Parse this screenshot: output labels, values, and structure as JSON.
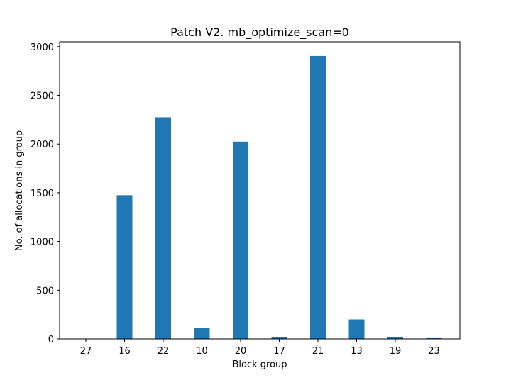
{
  "chart_data": {
    "type": "bar",
    "title": "Patch V2. mb_optimize_scan=0",
    "xlabel": "Block group",
    "ylabel": "No. of allocations in group",
    "categories": [
      "27",
      "16",
      "22",
      "10",
      "20",
      "17",
      "21",
      "13",
      "19",
      "23"
    ],
    "values": [
      3,
      1475,
      2275,
      110,
      2025,
      15,
      2905,
      200,
      15,
      8
    ],
    "ylim": [
      0,
      3050
    ],
    "yticks": [
      0,
      500,
      1000,
      1500,
      2000,
      2500,
      3000
    ],
    "ytick_labels": [
      "0",
      "500",
      "1000",
      "1500",
      "2000",
      "2500",
      "3000"
    ],
    "bar_color": "#1f77b4",
    "grid": false,
    "legend": false
  }
}
